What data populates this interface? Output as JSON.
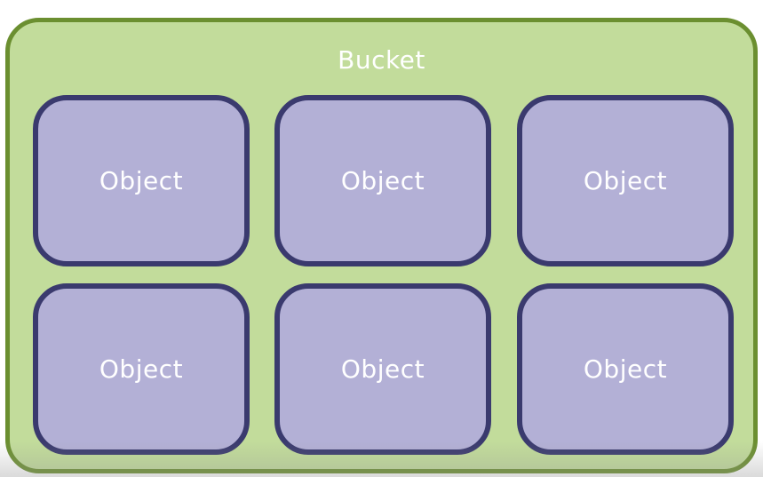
{
  "bucket": {
    "label": "Bucket"
  },
  "objects": [
    {
      "label": "Object"
    },
    {
      "label": "Object"
    },
    {
      "label": "Object"
    },
    {
      "label": "Object"
    },
    {
      "label": "Object"
    },
    {
      "label": "Object"
    }
  ],
  "colors": {
    "bucket_fill": "#c2dc9b",
    "bucket_border": "#6b8f30",
    "object_fill": "#b3b0d6",
    "object_border": "#3a3a6e",
    "text": "#ffffff"
  }
}
